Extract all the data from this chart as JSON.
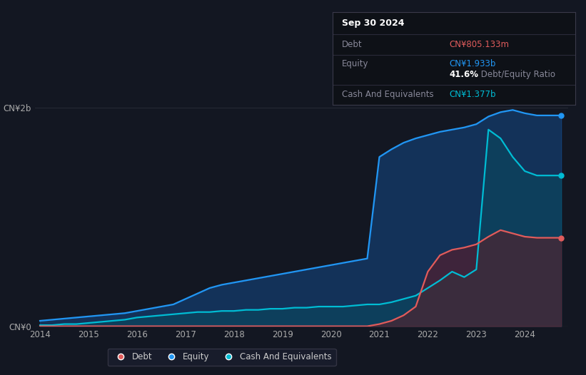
{
  "bg_color": "#131722",
  "plot_bg_color": "#131722",
  "grid_color": "#2a2e39",
  "title_box": {
    "date": "Sep 30 2024",
    "debt_label": "Debt",
    "debt_value": "CN¥805.133m",
    "debt_color": "#e05c5c",
    "equity_label": "Equity",
    "equity_value": "CN¥1.933b",
    "equity_color": "#2196f3",
    "ratio_value": "41.6%",
    "ratio_label": " Debt/Equity Ratio",
    "ratio_color": "#ffffff",
    "cash_label": "Cash And Equivalents",
    "cash_value": "CN¥1.377b",
    "cash_color": "#00bcd4"
  },
  "y_labels": [
    "CN¥0",
    "CN¥2b"
  ],
  "x_labels": [
    "2014",
    "2015",
    "2016",
    "2017",
    "2018",
    "2019",
    "2020",
    "2021",
    "2022",
    "2023",
    "2024"
  ],
  "legend": [
    {
      "label": "Debt",
      "color": "#e05c5c"
    },
    {
      "label": "Equity",
      "color": "#2196f3"
    },
    {
      "label": "Cash And Equivalents",
      "color": "#00bcd4"
    }
  ],
  "years": [
    2014.0,
    2014.25,
    2014.5,
    2014.75,
    2015.0,
    2015.25,
    2015.5,
    2015.75,
    2016.0,
    2016.25,
    2016.5,
    2016.75,
    2017.0,
    2017.25,
    2017.5,
    2017.75,
    2018.0,
    2018.25,
    2018.5,
    2018.75,
    2019.0,
    2019.25,
    2019.5,
    2019.75,
    2020.0,
    2020.25,
    2020.5,
    2020.75,
    2021.0,
    2021.25,
    2021.5,
    2021.75,
    2022.0,
    2022.25,
    2022.5,
    2022.75,
    2023.0,
    2023.25,
    2023.5,
    2023.75,
    2024.0,
    2024.25,
    2024.5,
    2024.75
  ],
  "equity": [
    0.05,
    0.06,
    0.07,
    0.08,
    0.09,
    0.1,
    0.11,
    0.12,
    0.14,
    0.16,
    0.18,
    0.2,
    0.25,
    0.3,
    0.35,
    0.38,
    0.4,
    0.42,
    0.44,
    0.46,
    0.48,
    0.5,
    0.52,
    0.54,
    0.56,
    0.58,
    0.6,
    0.62,
    1.55,
    1.62,
    1.68,
    1.72,
    1.75,
    1.78,
    1.8,
    1.82,
    1.85,
    1.92,
    1.96,
    1.98,
    1.95,
    1.93,
    1.93,
    1.93
  ],
  "debt": [
    0.0,
    0.0,
    0.0,
    0.0,
    0.0,
    0.0,
    0.0,
    0.0,
    0.0,
    0.0,
    0.0,
    0.0,
    0.0,
    0.0,
    0.0,
    0.0,
    0.0,
    0.0,
    0.0,
    0.0,
    0.0,
    0.0,
    0.0,
    0.0,
    0.0,
    0.0,
    0.0,
    0.0,
    0.02,
    0.05,
    0.1,
    0.18,
    0.5,
    0.65,
    0.7,
    0.72,
    0.75,
    0.82,
    0.88,
    0.85,
    0.82,
    0.81,
    0.81,
    0.81
  ],
  "cash": [
    0.01,
    0.01,
    0.02,
    0.02,
    0.03,
    0.04,
    0.05,
    0.06,
    0.08,
    0.09,
    0.1,
    0.11,
    0.12,
    0.13,
    0.13,
    0.14,
    0.14,
    0.15,
    0.15,
    0.16,
    0.16,
    0.17,
    0.17,
    0.18,
    0.18,
    0.18,
    0.19,
    0.2,
    0.2,
    0.22,
    0.25,
    0.28,
    0.35,
    0.42,
    0.5,
    0.45,
    0.52,
    1.8,
    1.72,
    1.55,
    1.42,
    1.38,
    1.38,
    1.38
  ],
  "ylim": [
    0,
    2.3
  ],
  "xlim": [
    2013.9,
    2024.9
  ]
}
